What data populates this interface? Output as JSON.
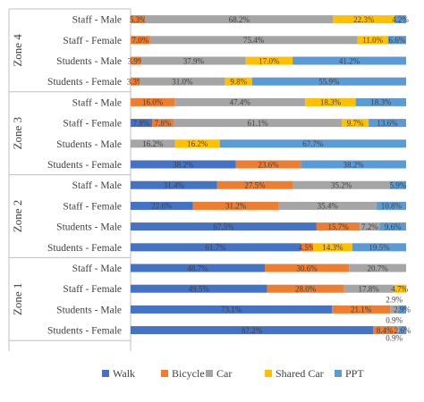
{
  "chart_data": {
    "type": "bar",
    "stacked": "100%",
    "orientation": "horizontal",
    "title": "",
    "xlabel": "",
    "ylabel": "",
    "legend_position": "bottom",
    "grid": false,
    "colors": {
      "walk": "#4472C4",
      "bicycle": "#ED7D31",
      "car": "#A5A5A5",
      "shared_car": "#FFC000",
      "ppt": "#5B9BD5"
    },
    "series_names": [
      "Walk",
      "Bicycle",
      "Car",
      "Shared Car",
      "PPT"
    ],
    "zones": [
      {
        "name": "Zone 4",
        "rows": [
          {
            "label": "Staff - Male",
            "values": [
              0,
              5.3,
              68.2,
              22.3,
              4.2
            ],
            "labels": [
              "",
              "5.3%",
              "68.2%",
              "22.3%",
              "4.2%"
            ]
          },
          {
            "label": "Staff - Female",
            "values": [
              0,
              7.0,
              75.4,
              11.0,
              6.6
            ],
            "labels": [
              "",
              "7.0%",
              "75.4%",
              "11.0%",
              "6.6%"
            ]
          },
          {
            "label": "Students - Male",
            "values": [
              0,
              3.9,
              37.9,
              17.0,
              41.2
            ],
            "labels": [
              "",
              "3.9%",
              "37.9%",
              "17.0%",
              "41.2%"
            ]
          },
          {
            "label": "Students - Female",
            "values": [
              0,
              3.3,
              31.0,
              9.8,
              55.9
            ],
            "labels": [
              "",
              "3.3%",
              "31.0%",
              "9.8%",
              "55.9%"
            ]
          }
        ]
      },
      {
        "name": "Zone 3",
        "rows": [
          {
            "label": "Staff - Male",
            "values": [
              0,
              16.0,
              47.4,
              18.3,
              18.3
            ],
            "labels": [
              "",
              "16.0%",
              "47.4%",
              "18.3%",
              "18.3%"
            ]
          },
          {
            "label": "Staff - Female",
            "values": [
              7.8,
              7.8,
              61.1,
              9.7,
              13.6
            ],
            "labels": [
              "7.8%",
              "7.8%",
              "61.1%",
              "9.7%",
              "13.6%"
            ]
          },
          {
            "label": "Students - Male",
            "values": [
              0,
              0,
              16.2,
              16.2,
              67.7
            ],
            "labels": [
              "",
              "",
              "16.2%",
              "16.2%",
              "67.7%"
            ]
          },
          {
            "label": "Students - Female",
            "values": [
              38.2,
              23.6,
              0,
              0,
              38.2
            ],
            "labels": [
              "38.2%",
              "23.6%",
              "",
              "",
              "38.2%"
            ]
          }
        ]
      },
      {
        "name": "Zone 2",
        "rows": [
          {
            "label": "Staff - Male",
            "values": [
              31.4,
              27.5,
              35.2,
              0,
              5.9
            ],
            "labels": [
              "31.4%",
              "27.5%",
              "35.2%",
              "",
              "5.9%"
            ]
          },
          {
            "label": "Staff - Female",
            "values": [
              22.6,
              31.2,
              35.4,
              0,
              10.8
            ],
            "labels": [
              "22.6%",
              "31.2%",
              "35.4%",
              "",
              "10.8%"
            ]
          },
          {
            "label": "Students - Male",
            "values": [
              67.5,
              15.7,
              7.2,
              0,
              9.6
            ],
            "labels": [
              "67.5%",
              "15.7%",
              "7.2%",
              "",
              "9.6%"
            ]
          },
          {
            "label": "Students - Female",
            "values": [
              61.7,
              4.5,
              0,
              14.3,
              19.5
            ],
            "labels": [
              "61.7%",
              "4.5%",
              "",
              "14.3%",
              "19.5%"
            ]
          }
        ]
      },
      {
        "name": "Zone 1",
        "rows": [
          {
            "label": "Staff - Male",
            "values": [
              48.7,
              30.6,
              20.7,
              0,
              0
            ],
            "labels": [
              "48.7%",
              "30.6%",
              "20.7%",
              "",
              ""
            ]
          },
          {
            "label": "Staff - Female",
            "values": [
              49.5,
              28.0,
              17.8,
              4.7,
              0
            ],
            "labels": [
              "49.5%",
              "28.0%",
              "17.8%",
              "4.7%",
              ""
            ]
          },
          {
            "label": "Students - Male",
            "values": [
              73.1,
              21.1,
              2.9,
              0,
              2.9
            ],
            "labels": [
              "73.1%",
              "21.1%",
              "",
              "",
              "2.9%"
            ],
            "outside_labels": [
              "2.9%"
            ]
          },
          {
            "label": "Students - Female",
            "values": [
              87.2,
              8.4,
              0.9,
              0,
              2.6
            ],
            "labels": [
              "87.2%",
              "8.4%",
              "",
              "",
              "2.6%"
            ],
            "outside_labels": [
              "0.9%",
              "0.9%"
            ]
          }
        ]
      }
    ]
  }
}
